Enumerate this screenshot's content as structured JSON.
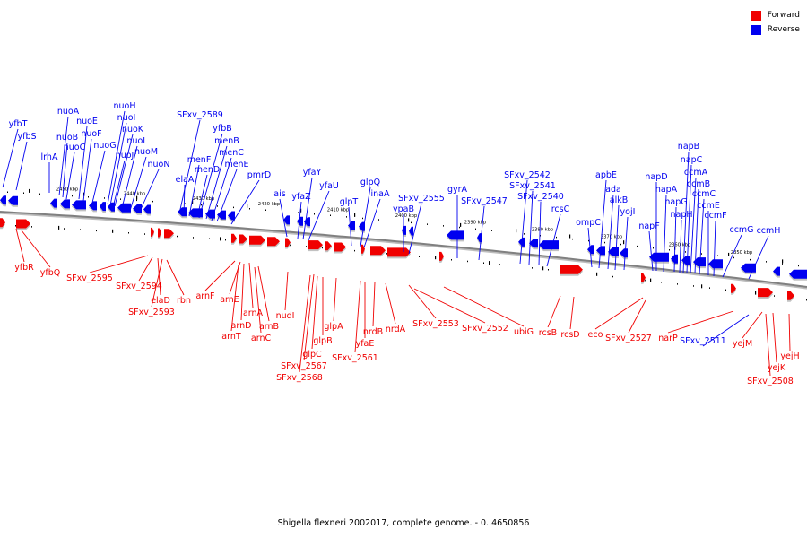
{
  "colors": {
    "forward": "#f00000",
    "reverse": "#0000f0",
    "backbone": "#808080"
  },
  "legend": [
    {
      "label": "Forward",
      "color": "#f00000"
    },
    {
      "label": "Reverse",
      "color": "#0000f0"
    }
  ],
  "caption": "Shigella flexneri 2002017, complete genome. - 0..4650856",
  "kbp_ticks": [
    "2450 kbp",
    "2440 kbp",
    "2430 kbp",
    "2420 kbp",
    "2410 kbp",
    "2400 kbp",
    "2390 kbp",
    "2380 kbp",
    "2370 kbp",
    "2360 kbp",
    "2350 kbp"
  ],
  "reverse_genes": [
    "yfbT",
    "yfbS",
    "lrhA",
    "nuoA",
    "nuoB",
    "nuoC",
    "nuoE",
    "nuoF",
    "nuoG",
    "nuoH",
    "nuoI",
    "nuoJ",
    "nuoK",
    "nuoL",
    "nuoM",
    "nuoN",
    "SFxv_2589",
    "elaA",
    "menF",
    "menD",
    "yfbB",
    "menB",
    "menC",
    "menE",
    "pmrD",
    "ais",
    "yfaZ",
    "yfaY",
    "yfaU",
    "glpT",
    "glpQ",
    "inaA",
    "ypaB",
    "SFxv_2555",
    "gyrA",
    "SFxv_2547",
    "SFxv_2542",
    "SFxv_2541",
    "SFxv_2540",
    "rcsC",
    "ompC",
    "apbE",
    "ada",
    "alkB",
    "yojI",
    "napF",
    "napD",
    "napA",
    "napG",
    "napH",
    "napB",
    "napC",
    "ccmA",
    "ccmB",
    "ccmC",
    "ccmE",
    "ccmF",
    "ccmG",
    "ccmH",
    "SFxv_2511"
  ],
  "forward_genes": [
    "yfbR",
    "yfbQ",
    "SFxv_2595",
    "SFxv_2594",
    "elaD",
    "SFxv_2593",
    "rbn",
    "arnF",
    "arnE",
    "arnA",
    "arnD",
    "arnT",
    "arnB",
    "arnC",
    "nudI",
    "SFxv_2567",
    "SFxv_2568",
    "glpC",
    "glpB",
    "glpA",
    "yfaE",
    "SFxv_2561",
    "nrdB",
    "nrdA",
    "SFxv_2553",
    "SFxv_2552",
    "ubiG",
    "rcsB",
    "rcsD",
    "eco",
    "SFxv_2527",
    "narP",
    "yejM",
    "yejK",
    "yejH",
    "SFxv_2508"
  ]
}
